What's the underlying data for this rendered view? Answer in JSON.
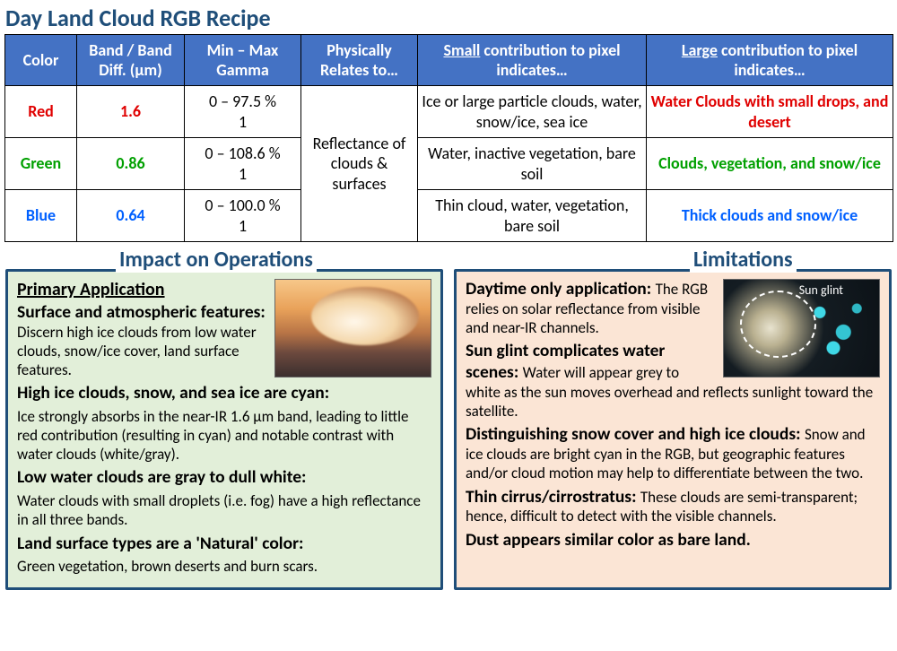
{
  "title": "Day Land Cloud RGB Recipe",
  "colors": {
    "header_bg": "#4472c4",
    "header_fg": "#ffffff",
    "title_fg": "#1f4e79",
    "box_left_bg": "#e2efd9",
    "box_right_bg": "#fbe5d5",
    "box_border": "#1f4e79",
    "red": "#e00000",
    "green": "#00a000",
    "blue": "#0060ff"
  },
  "table": {
    "headers": {
      "color": "Color",
      "band": "Band / Band Diff. (µm)",
      "gamma": "Min – Max Gamma",
      "phys": "Physically Relates to…",
      "small_pre": "Small",
      "small_post": " contribution to pixel indicates…",
      "large_pre": "Large",
      "large_post": " contribution to pixel indicates…"
    },
    "phys_cell": "Reflectance of clouds & surfaces",
    "rows": {
      "red": {
        "label": "Red",
        "band": "1.6",
        "gamma_l1": "0 – 97.5 %",
        "gamma_l2": "1",
        "small": "Ice or large particle clouds, water, snow/ice, sea ice",
        "large": "Water Clouds with small drops, and desert"
      },
      "green": {
        "label": "Green",
        "band": "0.86",
        "gamma_l1": "0 – 108.6 %",
        "gamma_l2": "1",
        "small": "Water, inactive vegetation, bare soil",
        "large": "Clouds, vegetation, and snow/ice"
      },
      "blue": {
        "label": "Blue",
        "band": "0.64",
        "gamma_l1": "0 – 100.0 %",
        "gamma_l2": "1",
        "small": "Thin cloud, water, vegetation, bare soil",
        "large": "Thick clouds and snow/ice"
      }
    }
  },
  "impact": {
    "heading": "Impact on Operations",
    "pa_title": "Primary Application",
    "p1_lead": "Surface and atmospheric features: ",
    "p1_body": "Discern high ice clouds from low water clouds, snow/ice cover, land surface features.",
    "p2_lead": "High ice clouds, snow, and sea ice are cyan:",
    "p2_body": "Ice strongly absorbs in the near-IR 1.6 µm band, leading to little red contribution (resulting in cyan) and notable contrast with water clouds (white/gray).",
    "p3_lead": "Low water clouds are gray to dull white:",
    "p3_body": "Water clouds with small droplets (i.e. fog) have a high reflectance in all three bands.",
    "p4_lead": "Land surface types are a 'Natural' color:",
    "p4_body": "Green vegetation, brown deserts and burn scars."
  },
  "limits": {
    "heading": "Limitations",
    "glint_label": "Sun glint",
    "p1_lead": "Daytime only application: ",
    "p1_body": "The RGB relies on solar reflectance from visible and near-IR channels.",
    "p2_lead": "Sun glint complicates water scenes: ",
    "p2_body": "Water will appear grey to white as the sun moves overhead and reflects sunlight toward the satellite.",
    "p3_lead": "Distinguishing snow cover and high ice clouds: ",
    "p3_body": "Snow and ice clouds are bright cyan in the RGB, but geographic features and/or cloud motion may help to differentiate between the two.",
    "p4_lead": "Thin cirrus/cirrostratus: ",
    "p4_body": "These clouds are semi-transparent; hence, difficult to detect with the visible channels.",
    "p5_lead": "Dust appears similar color as bare land."
  }
}
